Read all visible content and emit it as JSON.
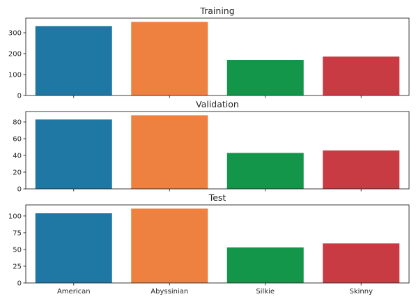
{
  "chart_data": [
    {
      "type": "bar",
      "title": "Training",
      "categories": [
        "American",
        "Abyssinian",
        "Silkie",
        "Skinny"
      ],
      "values": [
        332,
        352,
        170,
        186
      ],
      "ylim": [
        0,
        370
      ],
      "yticks": [
        0,
        100,
        200,
        300
      ],
      "show_xticklabels": false,
      "grid": false
    },
    {
      "type": "bar",
      "title": "Validation",
      "categories": [
        "American",
        "Abyssinian",
        "Silkie",
        "Skinny"
      ],
      "values": [
        83,
        88,
        43,
        46
      ],
      "ylim": [
        0,
        92.5
      ],
      "yticks": [
        0,
        20,
        40,
        60,
        80
      ],
      "show_xticklabels": false,
      "grid": false
    },
    {
      "type": "bar",
      "title": "Test",
      "categories": [
        "American",
        "Abyssinian",
        "Silkie",
        "Skinny"
      ],
      "values": [
        104,
        111,
        53,
        59
      ],
      "ylim": [
        0,
        116.5
      ],
      "yticks": [
        0,
        25,
        50,
        75,
        100
      ],
      "show_xticklabels": true,
      "grid": false
    }
  ],
  "colors": [
    "#1f77a4",
    "#ee8040",
    "#13954a",
    "#c83b42"
  ]
}
